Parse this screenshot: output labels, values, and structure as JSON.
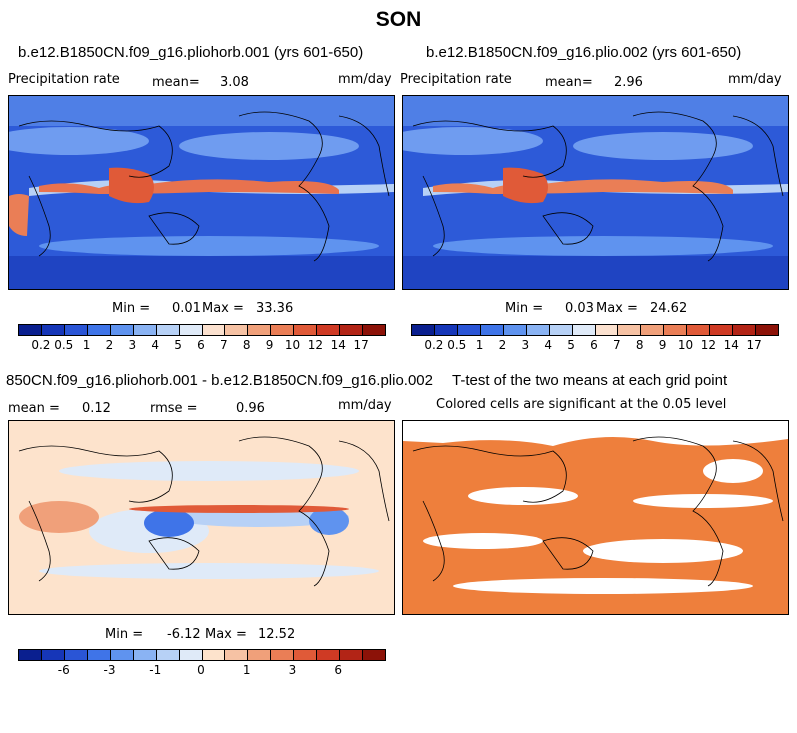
{
  "page_title": "SON",
  "panels": [
    {
      "title": "b.e12.B1850CN.f09_g16.pliohorb.001 (yrs 601-650)",
      "left_label": "Precipitation rate",
      "mean_label": "mean=",
      "mean_value": "3.08",
      "units": "mm/day",
      "min_label": "Min =",
      "min_value": "0.01",
      "max_label": "Max =",
      "max_value": "33.36"
    },
    {
      "title": "b.e12.B1850CN.f09_g16.plio.002 (yrs 601-650)",
      "left_label": "Precipitation rate",
      "mean_label": "mean=",
      "mean_value": "2.96",
      "units": "mm/day",
      "min_label": "Min =",
      "min_value": "0.03",
      "max_label": "Max =",
      "max_value": "24.62"
    },
    {
      "title": "850CN.f09_g16.pliohorb.001 - b.e12.B1850CN.f09_g16.plio.002",
      "mean_label": "mean =",
      "mean_value": "0.12",
      "rmse_label": "rmse =",
      "rmse_value": "0.96",
      "units": "mm/day",
      "min_label": "Min =",
      "min_value": "-6.12",
      "max_label": "Max =",
      "max_value": "12.52"
    },
    {
      "title": "T-test of the two means at each grid point",
      "subtitle": "Colored cells are significant at the 0.05 level"
    }
  ],
  "colorbars": {
    "precip": {
      "colors": [
        "#0a1f8f",
        "#1636b8",
        "#2a55d6",
        "#3f74e8",
        "#5f93ef",
        "#8ab3f3",
        "#b7d1f6",
        "#dfeaf8",
        "#fbe1cf",
        "#f6c2a4",
        "#f0a07a",
        "#ea7e56",
        "#e05a38",
        "#cf3a24",
        "#b22416",
        "#8c1208"
      ],
      "ticks": [
        "0.2",
        "0.5",
        "1",
        "2",
        "3",
        "4",
        "5",
        "6",
        "7",
        "8",
        "9",
        "10",
        "12",
        "14",
        "17"
      ]
    },
    "diff": {
      "colors": [
        "#0a1f8f",
        "#1636b8",
        "#2a55d6",
        "#3f74e8",
        "#5f93ef",
        "#8ab3f3",
        "#b7d1f6",
        "#dfeaf8",
        "#fde3cc",
        "#f6c2a4",
        "#f0a07a",
        "#ea7e56",
        "#e05a38",
        "#cf3a24",
        "#b22416",
        "#8c1208"
      ],
      "ticks": [
        "-6",
        "-3",
        "-1",
        "0",
        "1",
        "3",
        "6"
      ]
    }
  },
  "chart_data": [
    {
      "type": "heatmap",
      "title": "b.e12.B1850CN.f09_g16.pliohorb.001 (yrs 601-650)",
      "variable": "Precipitation rate",
      "units": "mm/day",
      "mean": 3.08,
      "min": 0.01,
      "max": 33.36,
      "levels": [
        0.2,
        0.5,
        1,
        2,
        3,
        4,
        5,
        6,
        7,
        8,
        9,
        10,
        12,
        14,
        17
      ]
    },
    {
      "type": "heatmap",
      "title": "b.e12.B1850CN.f09_g16.plio.002 (yrs 601-650)",
      "variable": "Precipitation rate",
      "units": "mm/day",
      "mean": 2.96,
      "min": 0.03,
      "max": 24.62,
      "levels": [
        0.2,
        0.5,
        1,
        2,
        3,
        4,
        5,
        6,
        7,
        8,
        9,
        10,
        12,
        14,
        17
      ]
    },
    {
      "type": "heatmap",
      "title": "850CN.f09_g16.pliohorb.001 - b.e12.B1850CN.f09_g16.plio.002",
      "units": "mm/day",
      "mean": 0.12,
      "rmse": 0.96,
      "min": -6.12,
      "max": 12.52,
      "levels": [
        -6,
        -3,
        -1,
        0,
        1,
        3,
        6
      ]
    },
    {
      "type": "heatmap",
      "title": "T-test of the two means at each grid point",
      "note": "Colored cells are significant at the 0.05 level"
    }
  ]
}
